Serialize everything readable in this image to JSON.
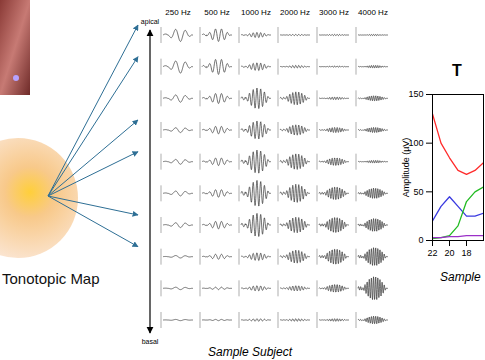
{
  "tonotopic_map": {
    "label": "Tonotopic Map"
  },
  "grid": {
    "columns": [
      "250 Hz",
      "500 Hz",
      "1000 Hz",
      "2000 Hz",
      "3000 Hz",
      "4000 Hz"
    ],
    "axis_top": "apical",
    "axis_bottom": "basal",
    "caption": "Sample Subject",
    "amplitudes": [
      [
        0.5,
        0.5,
        0.2,
        0.05,
        0.05,
        0.05
      ],
      [
        0.5,
        0.6,
        0.3,
        0.1,
        0.05,
        0.1
      ],
      [
        0.3,
        0.4,
        0.8,
        0.5,
        0.1,
        0.2
      ],
      [
        0.2,
        0.3,
        0.7,
        0.4,
        0.2,
        0.2
      ],
      [
        0.2,
        0.3,
        0.9,
        0.6,
        0.3,
        0.1
      ],
      [
        0.2,
        0.3,
        1.0,
        0.7,
        0.5,
        0.4
      ],
      [
        0.2,
        0.3,
        0.9,
        0.6,
        0.6,
        0.5
      ],
      [
        0.1,
        0.2,
        0.3,
        0.5,
        0.6,
        0.7
      ],
      [
        0.1,
        0.1,
        0.2,
        0.2,
        0.3,
        0.9
      ],
      [
        0.05,
        0.05,
        0.1,
        0.1,
        0.1,
        0.3
      ]
    ]
  },
  "chart_data": {
    "type": "line",
    "title": "T",
    "ylabel": "Amplitude (µV)",
    "caption": "Sample",
    "x": [
      22,
      21,
      20,
      19,
      18,
      17,
      16
    ],
    "xlim": [
      22,
      16
    ],
    "xticks": [
      22,
      20,
      18
    ],
    "ylim": [
      0,
      150
    ],
    "yticks": [
      0,
      50,
      100,
      150
    ],
    "series": [
      {
        "color": "#ff2a2a",
        "values": [
          130,
          100,
          85,
          72,
          68,
          72,
          80
        ]
      },
      {
        "color": "#3a3ae0",
        "values": [
          20,
          35,
          45,
          35,
          25,
          25,
          28
        ]
      },
      {
        "color": "#22bb22",
        "values": [
          2,
          3,
          5,
          15,
          40,
          50,
          55
        ]
      },
      {
        "color": "#9b30c8",
        "values": [
          3,
          3,
          4,
          4,
          5,
          5,
          5
        ]
      }
    ]
  }
}
